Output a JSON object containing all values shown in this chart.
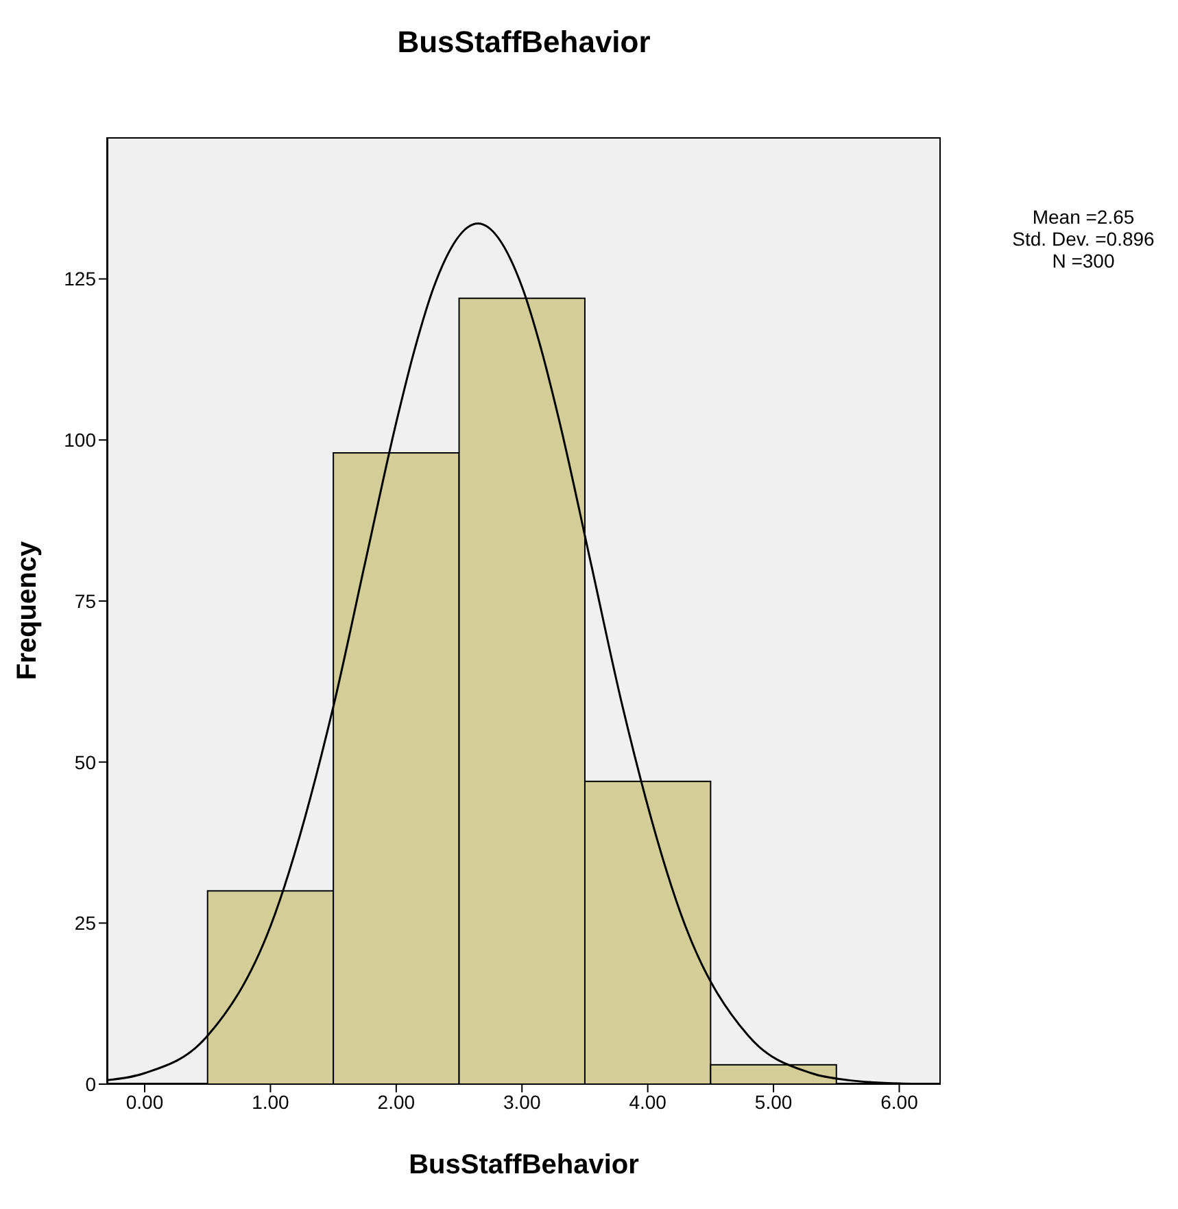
{
  "chart_data": {
    "type": "histogram",
    "title": "BusStaffBehavior",
    "xlabel": "BusStaffBehavior",
    "ylabel": "Frequency",
    "annotations": [
      "Mean =2.65",
      "Std. Dev. =0.896",
      "N =300"
    ],
    "bins": [
      0.5,
      1.5,
      2.5,
      3.5,
      4.5,
      5.5
    ],
    "values": [
      30,
      98,
      122,
      47,
      3
    ],
    "color": "#d3ce98",
    "series": [
      {
        "type": "line",
        "color": "#000000",
        "x": [
          -0.3,
          0,
          0.5,
          1,
          1.5,
          1.75,
          2,
          2.15,
          2.3,
          2.65,
          3,
          3.15,
          3.3,
          3.55,
          3.8,
          4.3,
          4.8,
          5.3,
          5.6,
          6,
          6.33
        ],
        "values": [
          0.6,
          1.7,
          7.5,
          24.5,
          58.6,
          80.7,
          102.7,
          114.3,
          123.8,
          133.6,
          123.8,
          114.3,
          102.7,
          80.7,
          58.6,
          24.5,
          7.5,
          1.7,
          0.6,
          0.1,
          0
        ]
      }
    ],
    "xlim": [
      -0.3,
      6.33
    ],
    "xticks": [
      {
        "value": 0,
        "label": "0.00"
      },
      {
        "value": 1,
        "label": "1.00"
      },
      {
        "value": 2,
        "label": "2.00"
      },
      {
        "value": 3,
        "label": "3.00"
      },
      {
        "value": 4,
        "label": "4.00"
      },
      {
        "value": 5,
        "label": "5.00"
      },
      {
        "value": 6,
        "label": "6.00"
      }
    ],
    "ylim": [
      0,
      147
    ],
    "yticks": [
      0,
      25,
      50,
      75,
      100,
      125
    ],
    "grid": false,
    "legend": false
  }
}
